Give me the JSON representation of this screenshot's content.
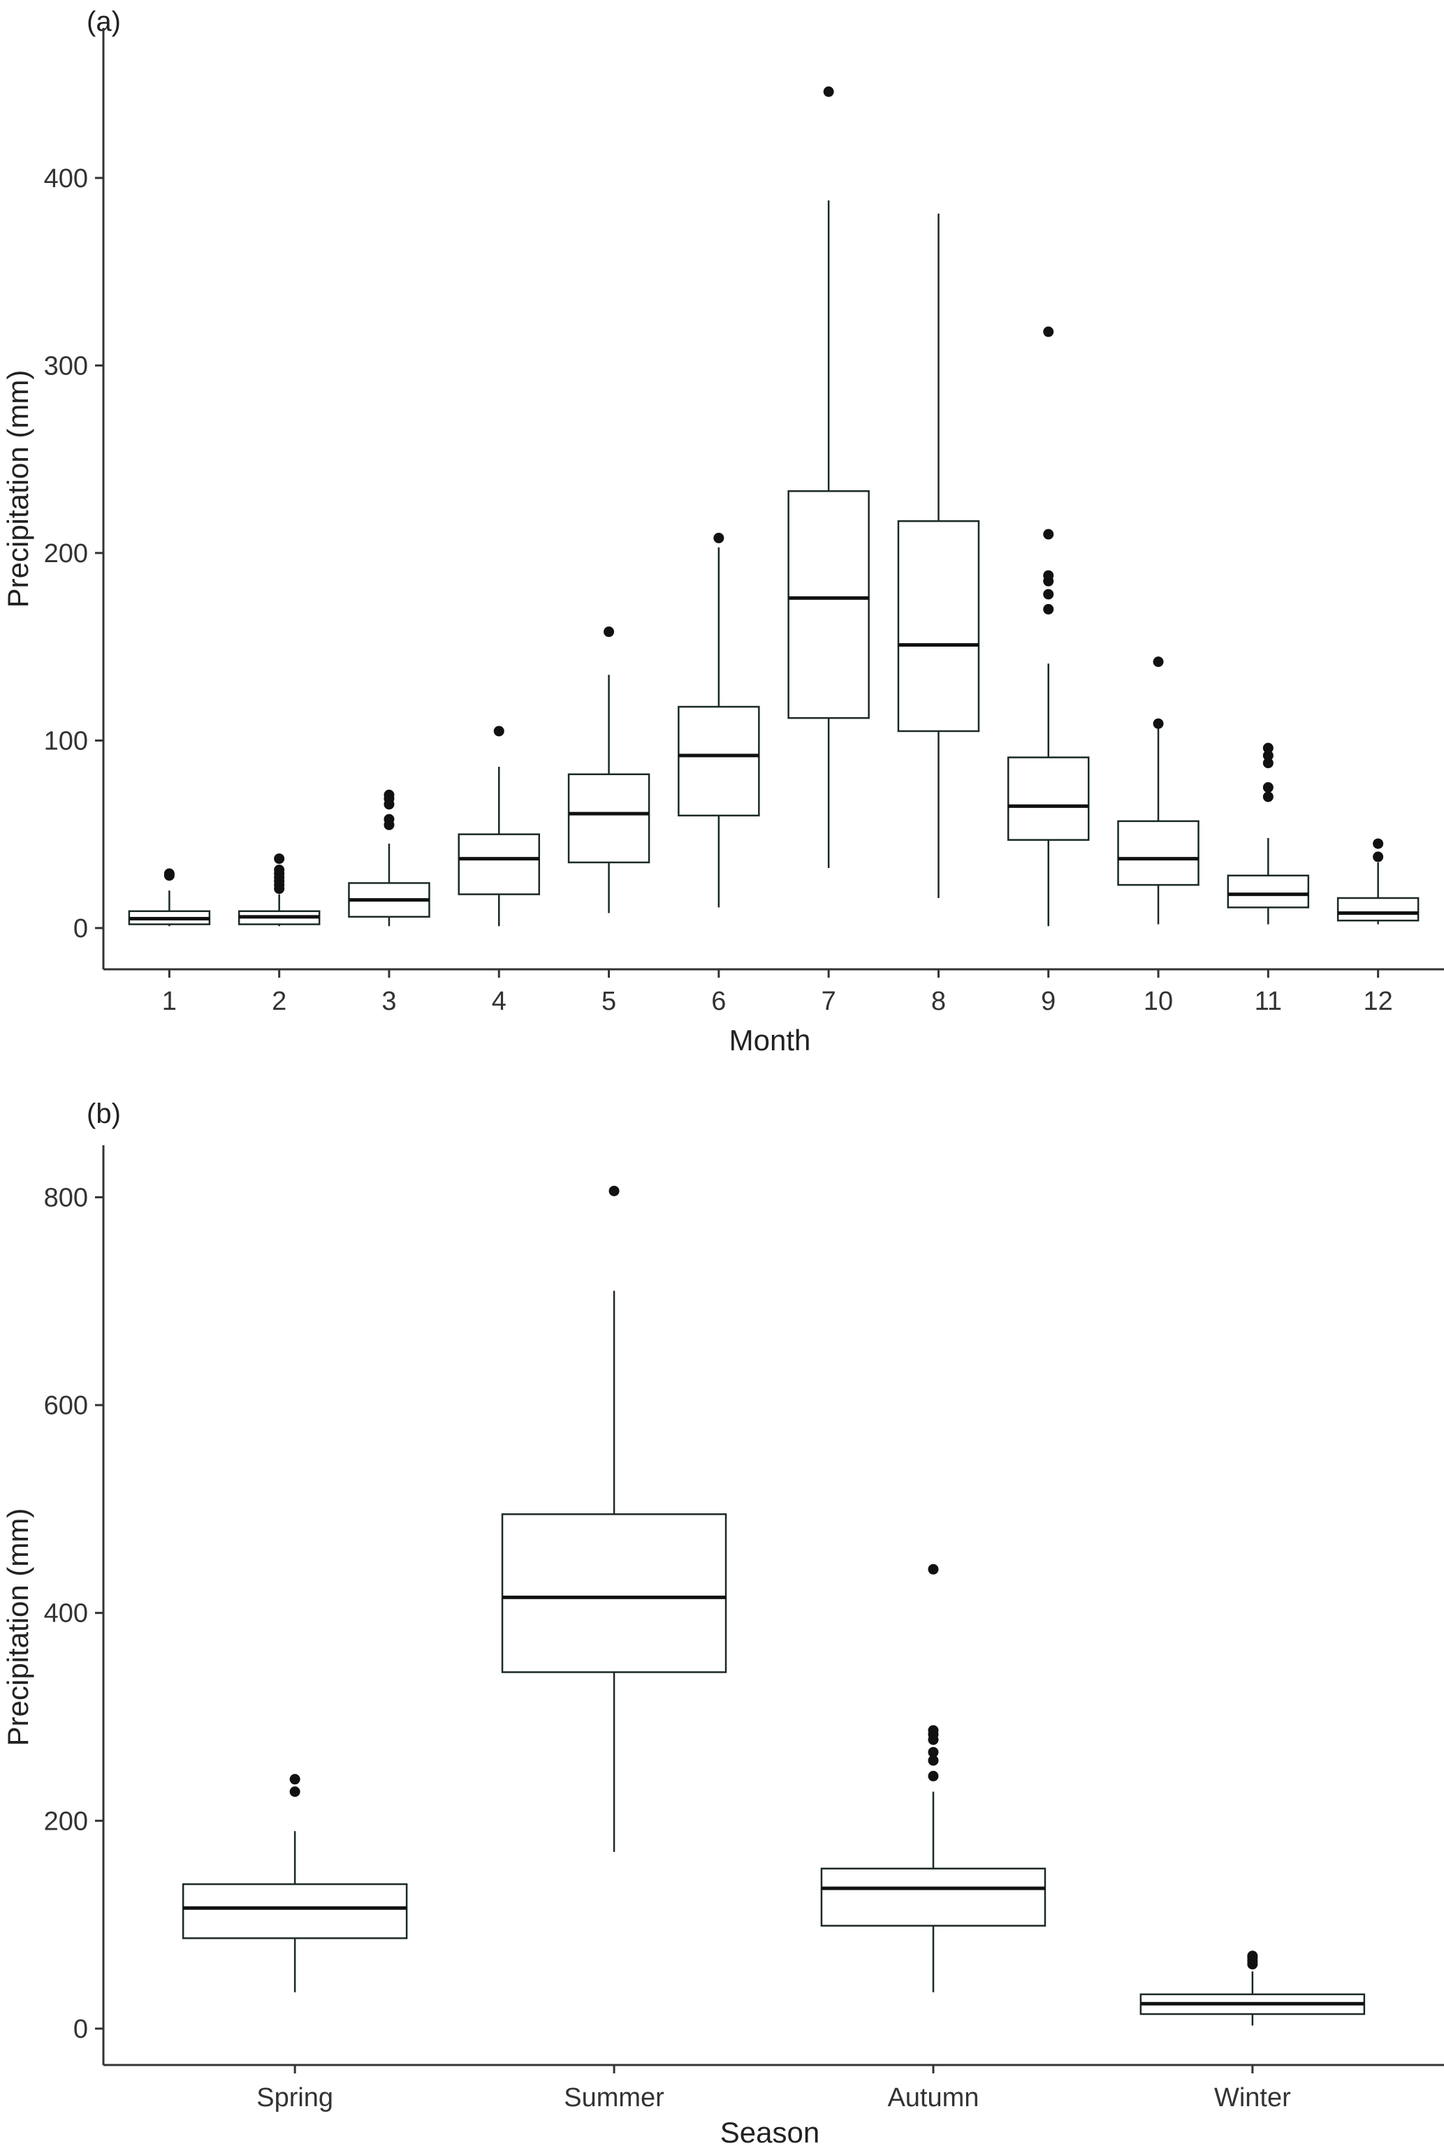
{
  "chart_data": [
    {
      "panel": "(a)",
      "type": "box",
      "xlabel": "Month",
      "ylabel": "Precipitation (mm)",
      "ylim": [
        -22,
        480
      ],
      "yticks": [
        0,
        100,
        200,
        300,
        400
      ],
      "categories": [
        "1",
        "2",
        "3",
        "4",
        "5",
        "6",
        "7",
        "8",
        "9",
        "10",
        "11",
        "12"
      ],
      "boxes": [
        {
          "min": 1,
          "q1": 2,
          "median": 5,
          "q3": 9,
          "max": 20,
          "outliers": [
            28,
            29
          ]
        },
        {
          "min": 1,
          "q1": 2,
          "median": 6,
          "q3": 9,
          "max": 18,
          "outliers": [
            21,
            23,
            25,
            27,
            29,
            31,
            37
          ]
        },
        {
          "min": 1,
          "q1": 6,
          "median": 15,
          "q3": 24,
          "max": 45,
          "outliers": [
            55,
            58,
            66,
            69,
            71
          ]
        },
        {
          "min": 1,
          "q1": 18,
          "median": 37,
          "q3": 50,
          "max": 86,
          "outliers": [
            105
          ]
        },
        {
          "min": 8,
          "q1": 35,
          "median": 61,
          "q3": 82,
          "max": 135,
          "outliers": [
            158
          ]
        },
        {
          "min": 11,
          "q1": 60,
          "median": 92,
          "q3": 118,
          "max": 203,
          "outliers": [
            208
          ]
        },
        {
          "min": 32,
          "q1": 112,
          "median": 176,
          "q3": 233,
          "max": 388,
          "outliers": [
            446
          ]
        },
        {
          "min": 16,
          "q1": 105,
          "median": 151,
          "q3": 217,
          "max": 381,
          "outliers": []
        },
        {
          "min": 1,
          "q1": 47,
          "median": 65,
          "q3": 91,
          "max": 141,
          "outliers": [
            170,
            178,
            185,
            188,
            210,
            318
          ]
        },
        {
          "min": 2,
          "q1": 23,
          "median": 37,
          "q3": 57,
          "max": 107,
          "outliers": [
            109,
            142
          ]
        },
        {
          "min": 2,
          "q1": 11,
          "median": 18,
          "q3": 28,
          "max": 48,
          "outliers": [
            70,
            75,
            88,
            92,
            96
          ]
        },
        {
          "min": 2,
          "q1": 4,
          "median": 8,
          "q3": 16,
          "max": 35,
          "outliers": [
            38,
            45
          ]
        }
      ]
    },
    {
      "panel": "(b)",
      "type": "box",
      "xlabel": "Season",
      "ylabel": "Precipitation (mm)",
      "ylim": [
        -35,
        850
      ],
      "yticks": [
        0,
        200,
        400,
        600,
        800
      ],
      "categories": [
        "Spring",
        "Summer",
        "Autumn",
        "Winter"
      ],
      "boxes": [
        {
          "min": 35,
          "q1": 87,
          "median": 116,
          "q3": 139,
          "max": 190,
          "outliers": [
            228,
            240
          ]
        },
        {
          "min": 170,
          "q1": 343,
          "median": 415,
          "q3": 495,
          "max": 710,
          "outliers": [
            806
          ]
        },
        {
          "min": 35,
          "q1": 99,
          "median": 135,
          "q3": 154,
          "max": 228,
          "outliers": [
            243,
            258,
            266,
            278,
            283,
            287,
            442
          ]
        },
        {
          "min": 3,
          "q1": 14,
          "median": 24,
          "q3": 33,
          "max": 55,
          "outliers": [
            62,
            65,
            68,
            70
          ]
        }
      ]
    }
  ]
}
